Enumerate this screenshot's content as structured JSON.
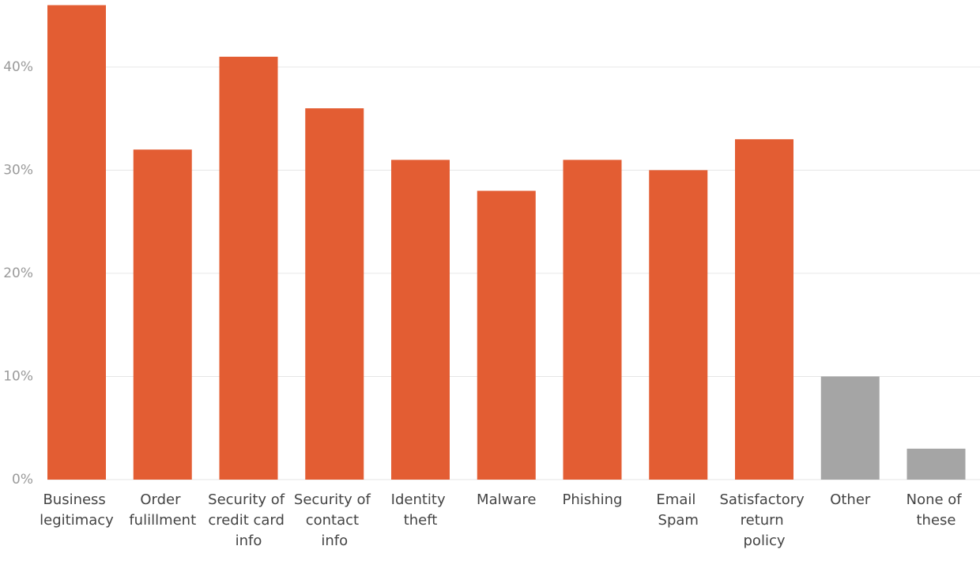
{
  "chart_data": {
    "type": "bar",
    "categories": [
      "Business legitimacy",
      "Order fulillment",
      "Security of credit card info",
      "Security of contact info",
      "Identity theft",
      "Malware",
      "Phishing",
      "Email Spam",
      "Satisfactory return policy",
      "Other",
      "None of these"
    ],
    "values": [
      46,
      32,
      41,
      36,
      31,
      28,
      31,
      30,
      33,
      10,
      3
    ],
    "colors": [
      "#e35d33",
      "#e35d33",
      "#e35d33",
      "#e35d33",
      "#e35d33",
      "#e35d33",
      "#e35d33",
      "#e35d33",
      "#e35d33",
      "#a5a5a5",
      "#a5a5a5"
    ],
    "ylim": [
      0,
      46.5
    ],
    "yticks": [
      {
        "value": 0,
        "label": "0%"
      },
      {
        "value": 10,
        "label": "10%"
      },
      {
        "value": 20,
        "label": "20%"
      },
      {
        "value": 30,
        "label": "30%"
      },
      {
        "value": 40,
        "label": "40%"
      }
    ],
    "grid": true
  }
}
